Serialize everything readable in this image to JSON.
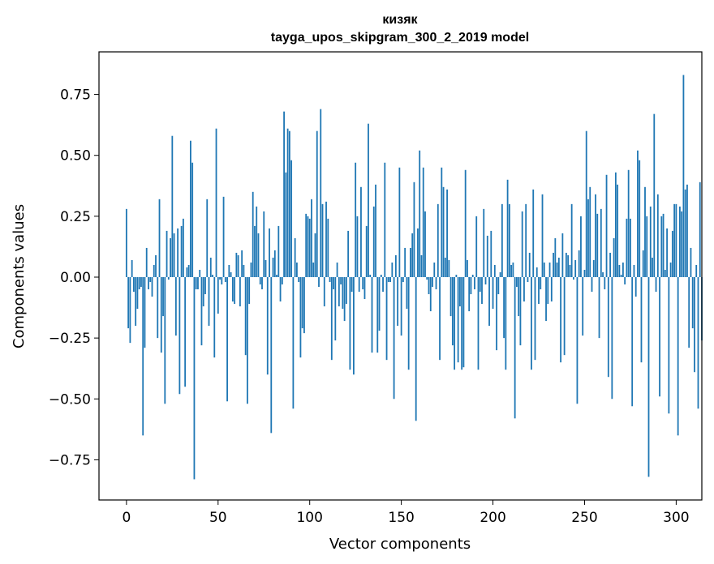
{
  "chart_data": {
    "type": "bar",
    "title": "кизяк",
    "subtitle": "tayga_upos_skipgram_300_2_2019 model",
    "xlabel": "Vector components",
    "ylabel": "Components values",
    "xlim": [
      -15,
      314
    ],
    "ylim": [
      -0.915,
      0.925
    ],
    "xticks": [
      0,
      50,
      100,
      150,
      200,
      250,
      300
    ],
    "xtick_labels": [
      "0",
      "50",
      "100",
      "150",
      "200",
      "250",
      "300"
    ],
    "yticks": [
      -0.75,
      -0.5,
      -0.25,
      0.0,
      0.25,
      0.5,
      0.75
    ],
    "ytick_labels": [
      "−0.75",
      "−0.50",
      "−0.25",
      "0.00",
      "0.25",
      "0.50",
      "0.75"
    ],
    "grid": false,
    "bar_color": "#1f77b4",
    "values": [
      0.28,
      -0.21,
      -0.27,
      0.07,
      -0.06,
      -0.2,
      -0.13,
      -0.05,
      -0.04,
      -0.65,
      -0.29,
      0.12,
      -0.05,
      -0.02,
      -0.08,
      0.05,
      0.09,
      -0.25,
      0.32,
      -0.31,
      -0.16,
      -0.52,
      0.19,
      -0.01,
      0.16,
      0.58,
      0.18,
      -0.24,
      0.2,
      -0.48,
      0.21,
      0.24,
      -0.45,
      0.04,
      0.05,
      0.56,
      0.47,
      -0.83,
      -0.05,
      -0.05,
      0.03,
      -0.28,
      -0.12,
      -0.07,
      0.32,
      -0.2,
      0.08,
      0.01,
      -0.33,
      0.61,
      -0.15,
      -0.01,
      -0.03,
      0.33,
      -0.02,
      -0.51,
      0.05,
      0.02,
      -0.1,
      -0.11,
      0.1,
      0.09,
      -0.12,
      0.11,
      0.05,
      -0.32,
      -0.52,
      -0.11,
      0.06,
      0.35,
      0.21,
      0.29,
      0.18,
      -0.03,
      -0.05,
      0.27,
      0.07,
      -0.4,
      0.2,
      -0.64,
      0.08,
      0.11,
      0.01,
      0.21,
      -0.1,
      -0.03,
      0.68,
      0.43,
      0.61,
      0.6,
      0.48,
      -0.54,
      0.16,
      0.06,
      -0.02,
      -0.33,
      -0.21,
      -0.23,
      0.26,
      0.25,
      0.24,
      0.32,
      0.06,
      0.18,
      0.6,
      -0.04,
      0.69,
      0.3,
      -0.12,
      0.31,
      0.24,
      -0.02,
      -0.34,
      -0.05,
      -0.26,
      0.06,
      -0.12,
      -0.03,
      -0.13,
      -0.18,
      -0.11,
      0.19,
      -0.38,
      -0.06,
      -0.4,
      0.47,
      0.25,
      -0.06,
      0.37,
      -0.05,
      -0.09,
      0.21,
      0.63,
      0.01,
      -0.31,
      0.29,
      0.38,
      -0.31,
      -0.22,
      0.01,
      -0.06,
      0.47,
      -0.34,
      -0.02,
      -0.02,
      0.06,
      -0.5,
      0.09,
      -0.2,
      0.45,
      -0.24,
      -0.02,
      0.12,
      -0.13,
      -0.38,
      0.12,
      0.18,
      0.39,
      -0.59,
      0.2,
      0.52,
      0.09,
      0.45,
      0.27,
      -0.01,
      -0.07,
      -0.14,
      -0.04,
      0.06,
      -0.05,
      0.3,
      -0.34,
      0.45,
      0.37,
      0.08,
      0.36,
      0.07,
      -0.16,
      -0.28,
      -0.38,
      0.01,
      -0.35,
      -0.12,
      -0.38,
      -0.37,
      0.44,
      0.07,
      -0.14,
      -0.07,
      0.01,
      -0.05,
      0.25,
      -0.38,
      -0.06,
      -0.11,
      0.28,
      -0.03,
      0.17,
      -0.2,
      0.19,
      -0.13,
      0.05,
      -0.3,
      -0.07,
      0.02,
      0.3,
      -0.25,
      -0.38,
      0.4,
      0.3,
      0.05,
      0.06,
      -0.58,
      -0.04,
      -0.16,
      -0.28,
      0.27,
      -0.1,
      0.3,
      -0.02,
      0.1,
      -0.38,
      0.36,
      -0.34,
      0.04,
      -0.11,
      -0.05,
      0.34,
      0.06,
      -0.18,
      -0.11,
      0.06,
      -0.1,
      0.1,
      0.16,
      0.06,
      0.08,
      -0.35,
      0.18,
      -0.32,
      0.1,
      0.09,
      0.05,
      0.3,
      -0.01,
      0.07,
      -0.52,
      0.11,
      0.25,
      -0.24,
      0.03,
      0.6,
      0.32,
      0.37,
      -0.06,
      0.07,
      0.34,
      0.26,
      -0.25,
      0.28,
      0.02,
      -0.05,
      0.42,
      -0.41,
      0.1,
      -0.5,
      0.16,
      0.43,
      0.38,
      0.05,
      0.01,
      0.06,
      -0.03,
      0.24,
      0.44,
      0.24,
      -0.53,
      0.05,
      -0.08,
      0.52,
      0.48,
      -0.35,
      0.11,
      0.37,
      0.25,
      -0.82,
      0.29,
      0.08,
      0.67,
      -0.06,
      0.34,
      -0.49,
      0.25,
      0.26,
      0.03,
      0.2,
      -0.56,
      0.06,
      0.19,
      0.3,
      0.3,
      -0.65,
      0.29,
      0.27,
      0.83,
      0.36,
      0.38,
      -0.29,
      0.12,
      -0.21,
      -0.39,
      0.05,
      -0.54,
      0.39,
      -0.26
    ]
  }
}
